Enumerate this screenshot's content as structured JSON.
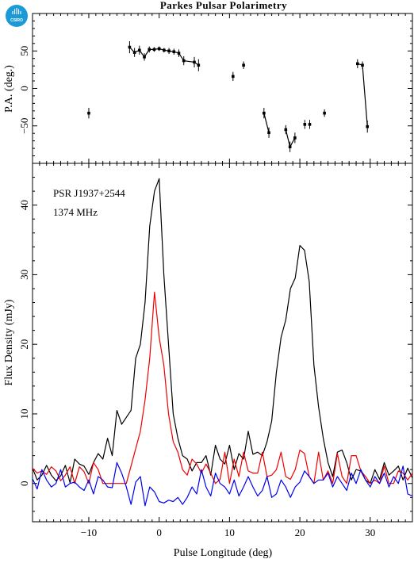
{
  "logo": {
    "text": "CSIRO",
    "color": "#1b9ad6"
  },
  "chart_data": {
    "title": "Parkes Pulsar Polarimetry",
    "xlabel": "Pulse Longitude (deg)",
    "xlim": [
      -18,
      36
    ],
    "x_ticks": [
      -10,
      0,
      10,
      20,
      30
    ],
    "panels": {
      "pa": {
        "type": "scatter",
        "ylabel": "P.A. (deg.)",
        "ylim": [
          -100,
          100
        ],
        "y_ticks": [
          50,
          0,
          -50
        ],
        "points": [
          [
            -10,
            -33,
            7
          ],
          [
            -4.2,
            55,
            8
          ],
          [
            -3.5,
            48,
            6
          ],
          [
            -2.8,
            51,
            6
          ],
          [
            -2.1,
            42,
            5
          ],
          [
            -1.4,
            52,
            4
          ],
          [
            -0.7,
            52,
            3
          ],
          [
            0,
            53,
            3
          ],
          [
            0.7,
            51,
            3
          ],
          [
            1.4,
            50,
            4
          ],
          [
            2.1,
            49,
            4
          ],
          [
            2.8,
            47,
            5
          ],
          [
            3.5,
            37,
            6
          ],
          [
            5.0,
            35,
            7
          ],
          [
            5.6,
            31,
            8
          ],
          [
            10.5,
            16,
            6
          ],
          [
            12,
            31,
            5
          ],
          [
            14.9,
            -33,
            7
          ],
          [
            15.6,
            -59,
            7
          ],
          [
            18,
            -55,
            6
          ],
          [
            18.6,
            -78,
            7
          ],
          [
            19.3,
            -66,
            7
          ],
          [
            20.7,
            -48,
            6
          ],
          [
            21.4,
            -48,
            6
          ],
          [
            23.5,
            -33,
            5
          ],
          [
            28.2,
            33,
            6
          ],
          [
            28.9,
            31,
            5
          ],
          [
            29.6,
            -51,
            8
          ]
        ],
        "connected_groups": [
          [
            1,
            14
          ],
          [
            17,
            18
          ],
          [
            19,
            21
          ],
          [
            25,
            27
          ]
        ]
      },
      "flux": {
        "type": "line",
        "ylabel": "Flux Density (mJy)",
        "ylim": [
          -5.5,
          46
        ],
        "y_ticks": [
          0,
          10,
          20,
          30,
          40
        ],
        "annotations": [
          "PSR J1937+2544",
          "1374 MHz"
        ],
        "series": [
          {
            "color": "#000000",
            "values": [
              2.2,
              0.5,
              1.2,
              2.6,
              1.2,
              0.4,
              1.1,
              2.6,
              0.1,
              3.5,
              2.8,
              2.5,
              1.3,
              3.0,
              4.3,
              3.5,
              6.5,
              4.0,
              10.5,
              8.5,
              9.5,
              10.5,
              18,
              20,
              26,
              37,
              42,
              43.8,
              30,
              20,
              10,
              6.5,
              4.0,
              3.5,
              1.8,
              3.0,
              3.0,
              4.0,
              1.2,
              5.5,
              3.5,
              2.8,
              5.5,
              2.0,
              4.3,
              3.5,
              7.5,
              4.2,
              4.5,
              4.0,
              6.0,
              9.0,
              16,
              21,
              23.5,
              28,
              29.5,
              34.2,
              33.5,
              29,
              17,
              11,
              6.5,
              3.0,
              1.0,
              4.5,
              4.8,
              3.0,
              0.5,
              2.0,
              1.8,
              0.5,
              0.0,
              2.0,
              0.6,
              3.0,
              1.2,
              1.8,
              2.5,
              0.5,
              2.2,
              0.8
            ]
          },
          {
            "color": "#ee0000",
            "values": [
              2.2,
              1.5,
              1.8,
              1.3,
              2.4,
              1.8,
              0.4,
              1.2,
              2.4,
              0.0,
              2.4,
              1.7,
              0.0,
              3.0,
              2.0,
              0.0,
              0.0,
              0.0,
              0.0,
              0.0,
              0.0,
              2.5,
              5.0,
              7.5,
              12,
              18,
              27.5,
              21,
              17,
              10,
              6.0,
              4.5,
              2.0,
              1.2,
              3.5,
              2.8,
              1.5,
              2.8,
              1.5,
              0.0,
              0.6,
              4.5,
              0.0,
              3.5,
              1.0,
              4.5,
              1.8,
              1.5,
              1.5,
              4.5,
              1.0,
              1.2,
              2.0,
              4.5,
              1.0,
              0.6,
              2.0,
              4.8,
              4.3,
              1.0,
              0.0,
              4.5,
              0.5,
              1.8,
              0.0,
              4.3,
              1.0,
              0.0,
              4.0,
              4.0,
              1.8,
              1.0,
              0.0,
              0.5,
              0.0,
              2.5,
              0.0,
              0.0,
              1.8,
              1.5,
              0.5,
              1.5
            ]
          },
          {
            "color": "#0000ee",
            "values": [
              0.7,
              -0.8,
              2.0,
              0.5,
              -0.5,
              0.0,
              2.0,
              -0.5,
              0.0,
              0.2,
              -0.5,
              -1.0,
              0.5,
              -1.5,
              1.0,
              0.5,
              -0.5,
              -0.6,
              3.0,
              1.5,
              -0.5,
              -3.0,
              0.2,
              1.0,
              -3.2,
              -0.5,
              -1.2,
              -2.6,
              -2.8,
              -2.4,
              -2.6,
              -2.0,
              -3.0,
              -2.0,
              -0.5,
              -1.5,
              2.0,
              -0.5,
              -1.8,
              1.5,
              0.0,
              -0.5,
              -1.5,
              0.5,
              -1.8,
              -0.5,
              1.0,
              -0.5,
              -1.8,
              -1.0,
              1.0,
              -2.0,
              -1.5,
              0.5,
              -0.5,
              -2.0,
              -0.5,
              0.2,
              1.8,
              1.0,
              0.0,
              0.5,
              0.5,
              1.5,
              -0.5,
              1.0,
              0.0,
              -1.0,
              1.5,
              0.0,
              2.0,
              0.5,
              -0.5,
              1.0,
              0.0,
              1.5,
              -0.5,
              1.0,
              0.0,
              2.5,
              -1.5,
              -1.8
            ]
          }
        ]
      }
    }
  }
}
